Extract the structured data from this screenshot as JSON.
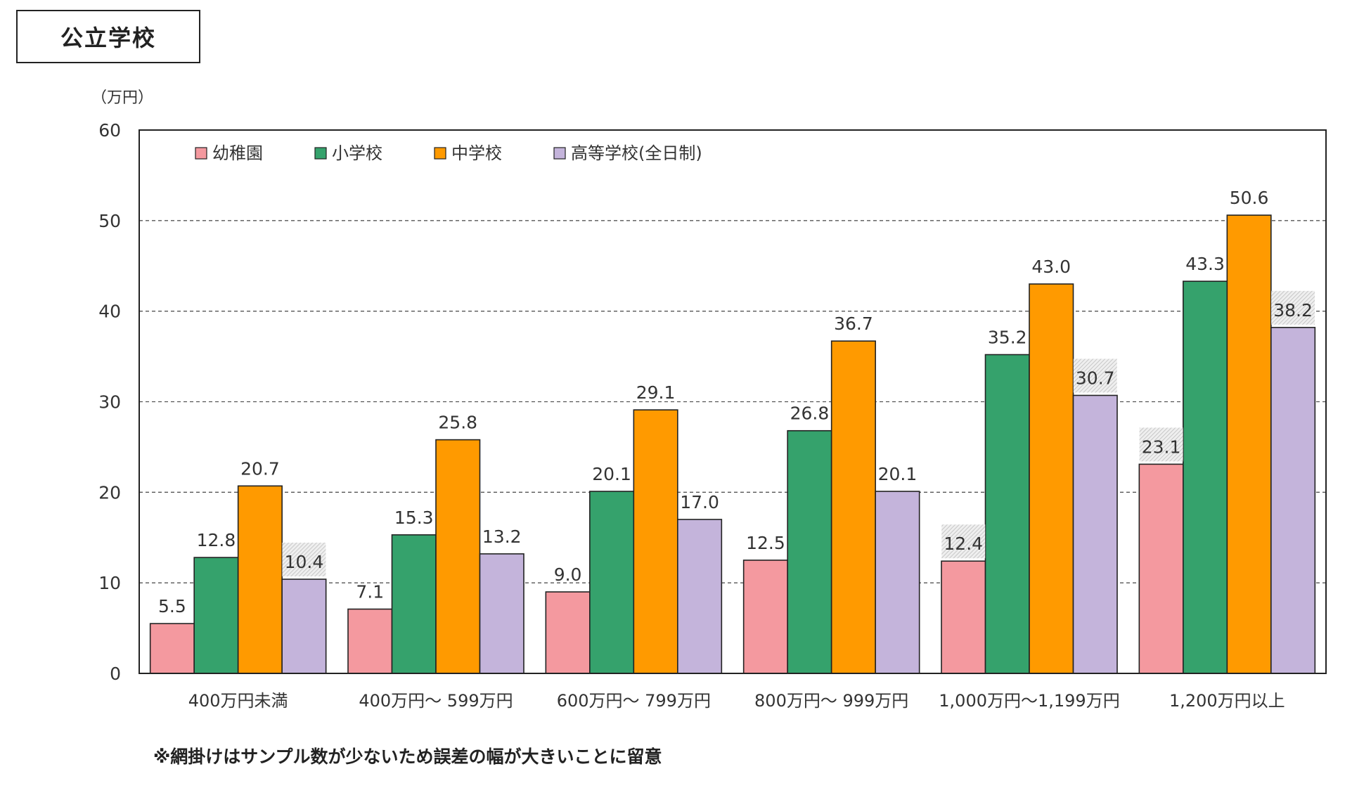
{
  "title": "公立学校",
  "note": "※網掛けはサンプル数が少ないため誤差の幅が大きいことに留意",
  "chart_data": {
    "type": "bar",
    "ylabel": "（万円）",
    "ylim": [
      0,
      60
    ],
    "yticks": [
      0,
      10,
      20,
      30,
      40,
      50,
      60
    ],
    "grid": "horizontal dashed",
    "legend_position": "top-left",
    "categories": [
      "400万円未満",
      "400万円～ 599万円",
      "600万円～ 799万円",
      "800万円～ 999万円",
      "1,000万円～1,199万円",
      "1,200万円以上"
    ],
    "series": [
      {
        "name": "幼稚園",
        "color": "#f4999f",
        "values": [
          5.5,
          7.1,
          9.0,
          12.5,
          12.4,
          23.1
        ],
        "hatched": [
          false,
          false,
          false,
          false,
          true,
          true
        ]
      },
      {
        "name": "小学校",
        "color": "#35a26c",
        "values": [
          12.8,
          15.3,
          20.1,
          26.8,
          35.2,
          43.3
        ],
        "hatched": [
          false,
          false,
          false,
          false,
          false,
          false
        ]
      },
      {
        "name": "中学校",
        "color": "#ff9a00",
        "values": [
          20.7,
          25.8,
          29.1,
          36.7,
          43.0,
          50.6
        ],
        "hatched": [
          false,
          false,
          false,
          false,
          false,
          false
        ]
      },
      {
        "name": "高等学校(全日制)",
        "color": "#c4b4db",
        "values": [
          10.4,
          13.2,
          17.0,
          20.1,
          30.7,
          38.2
        ],
        "hatched": [
          true,
          false,
          false,
          false,
          true,
          true
        ]
      }
    ]
  }
}
